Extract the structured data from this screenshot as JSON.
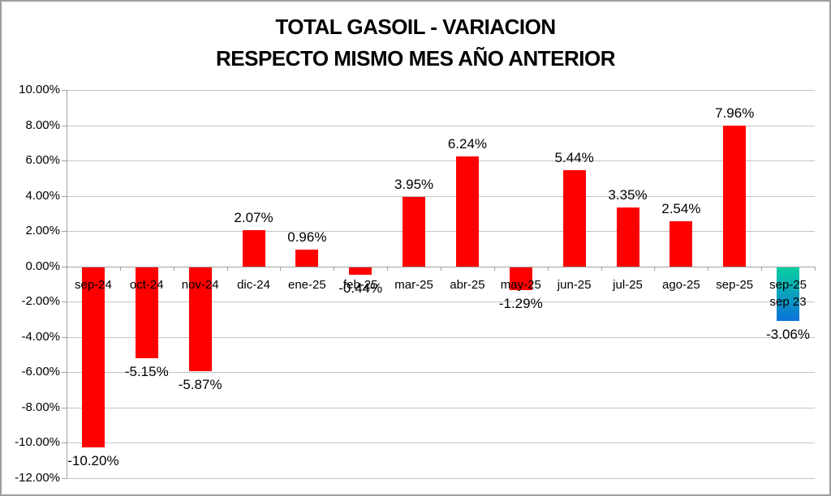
{
  "title": {
    "line1": "TOTAL GASOIL - VARIACION",
    "line2": "RESPECTO MISMO MES AÑO ANTERIOR"
  },
  "chart_data": {
    "type": "bar",
    "title": "TOTAL GASOIL - VARIACION RESPECTO MISMO MES AÑO ANTERIOR",
    "categories": [
      "sep-24",
      "oct-24",
      "nov-24",
      "dic-24",
      "ene-25",
      "feb-25",
      "mar-25",
      "abr-25",
      "may-25",
      "jun-25",
      "jul-25",
      "ago-25",
      "sep-25",
      "sep-25 sep 23"
    ],
    "values": [
      -10.2,
      -5.15,
      -5.87,
      2.07,
      0.96,
      -0.44,
      3.95,
      6.24,
      -1.29,
      5.44,
      3.35,
      2.54,
      7.96,
      -3.06
    ],
    "data_labels": [
      "-10.20%",
      "-5.15%",
      "-5.87%",
      "2.07%",
      "0.96%",
      "-0.44%",
      "3.95%",
      "6.24%",
      "-1.29%",
      "5.44%",
      "3.35%",
      "2.54%",
      "7.96%",
      "-3.06%"
    ],
    "xlabel": "",
    "ylabel": "",
    "ylim": [
      -12,
      10
    ],
    "grid": true,
    "legend": "none",
    "y_axis": {
      "min": -12,
      "max": 10,
      "step": 2,
      "tick_labels": [
        "10.00%",
        "8.00%",
        "6.00%",
        "4.00%",
        "2.00%",
        "0.00%",
        "-2.00%",
        "-4.00%",
        "-6.00%",
        "-8.00%",
        "-10.00%",
        "-12.00%"
      ]
    },
    "bar_color": "#ff0000",
    "special_bar": {
      "index": 13,
      "category_lines": [
        "sep-25",
        "sep 23"
      ],
      "gradient_top": "#0acfa2",
      "gradient_bottom": "#0b72d8"
    }
  },
  "colors": {
    "background": "#ffffff",
    "gridline": "#c4c4c4",
    "axis": "#a0a0a0",
    "border": "#9e9e9e",
    "text": "#000000"
  }
}
